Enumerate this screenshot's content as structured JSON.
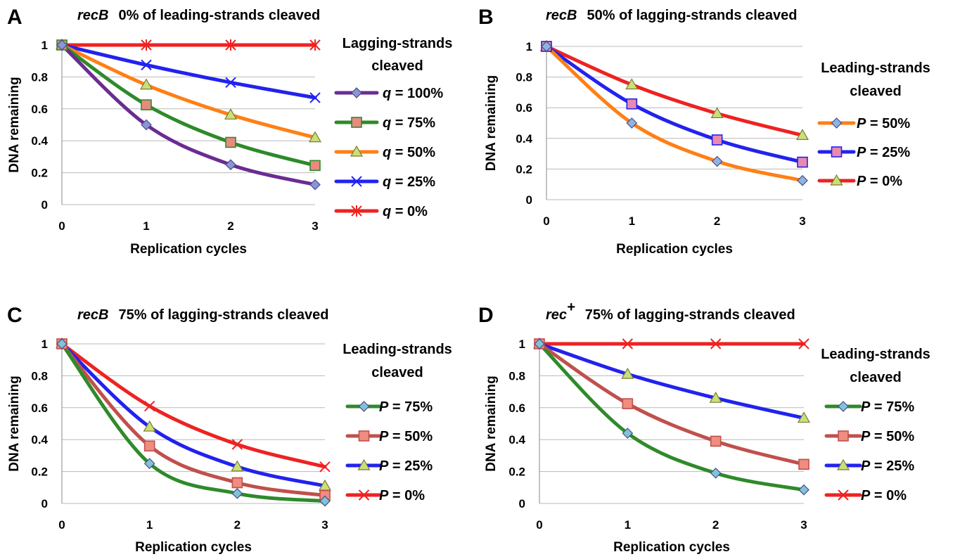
{
  "chart_data": [
    {
      "id": "A",
      "type": "line",
      "panel_letter": "A",
      "title_gene": "recB",
      "title": "0% of leading-strands cleaved",
      "xlabel": "Replication cycles",
      "ylabel": "DNA remaining",
      "x": [
        0,
        1,
        2,
        3
      ],
      "x_ticks": [
        "0",
        "1",
        "2",
        "3"
      ],
      "y_ticks": [
        "0",
        "0.2",
        "0.4",
        "0.6",
        "0.8",
        "1"
      ],
      "ylim": [
        0,
        1
      ],
      "grid": true,
      "legend_title": [
        "Lagging-strands",
        "cleaved"
      ],
      "legend_var": "q",
      "series": [
        {
          "name": "= 100%",
          "color": "#6a2c91",
          "marker": "diamond",
          "marker_fill": "#8b95d6",
          "values": [
            1,
            0.5,
            0.25,
            0.125
          ]
        },
        {
          "name": "= 75%",
          "color": "#2f8a2a",
          "marker": "square",
          "marker_fill": "#e88a7f",
          "values": [
            1,
            0.625,
            0.39,
            0.245
          ]
        },
        {
          "name": "= 50%",
          "color": "#ff7f15",
          "marker": "triangle",
          "marker_fill": "#c9e07a",
          "values": [
            1,
            0.75,
            0.5625,
            0.42
          ]
        },
        {
          "name": "= 25%",
          "color": "#2222ee",
          "marker": "x",
          "marker_fill": "#2222ee",
          "values": [
            1,
            0.875,
            0.765,
            0.67
          ]
        },
        {
          "name": "= 0%",
          "color": "#ee2222",
          "marker": "star",
          "marker_fill": "#ee2222",
          "values": [
            1,
            1,
            1,
            1
          ]
        }
      ]
    },
    {
      "id": "B",
      "type": "line",
      "panel_letter": "B",
      "title_gene": "recB",
      "title": "50% of lagging-strands cleaved",
      "xlabel": "Replication cycles",
      "ylabel": "DNA remaining",
      "x": [
        0,
        1,
        2,
        3
      ],
      "x_ticks": [
        "0",
        "1",
        "2",
        "3"
      ],
      "y_ticks": [
        "0",
        "0.2",
        "0.4",
        "0.6",
        "0.8",
        "1"
      ],
      "ylim": [
        0,
        1
      ],
      "grid": true,
      "legend_title": [
        "Leading-strands",
        "cleaved"
      ],
      "legend_var": "P",
      "series": [
        {
          "name": "= 50%",
          "color": "#ff7f15",
          "marker": "diamond",
          "marker_fill": "#8fb4e0",
          "values": [
            1,
            0.5,
            0.25,
            0.125
          ]
        },
        {
          "name": "= 25%",
          "color": "#2222ee",
          "marker": "square",
          "marker_fill": "#e88ab0",
          "values": [
            1,
            0.625,
            0.39,
            0.245
          ]
        },
        {
          "name": "= 0%",
          "color": "#ee2222",
          "marker": "triangle",
          "marker_fill": "#c9e07a",
          "values": [
            1,
            0.75,
            0.5625,
            0.42
          ]
        }
      ]
    },
    {
      "id": "C",
      "type": "line",
      "panel_letter": "C",
      "title_gene": "recB",
      "title": "75% of lagging-strands cleaved",
      "xlabel": "Replication cycles",
      "ylabel": "DNA remaining",
      "x": [
        0,
        1,
        2,
        3
      ],
      "x_ticks": [
        "0",
        "1",
        "2",
        "3"
      ],
      "y_ticks": [
        "0",
        "0.2",
        "0.4",
        "0.6",
        "0.8",
        "1"
      ],
      "ylim": [
        0,
        1
      ],
      "grid": true,
      "legend_title": [
        "Leading-strands",
        "cleaved"
      ],
      "legend_var": "P",
      "series": [
        {
          "name": "= 75%",
          "color": "#2f8a2a",
          "marker": "diamond",
          "marker_fill": "#7fc4d6",
          "values": [
            1,
            0.25,
            0.0625,
            0.015
          ]
        },
        {
          "name": "= 50%",
          "color": "#c0504d",
          "marker": "square",
          "marker_fill": "#f08c80",
          "values": [
            1,
            0.36,
            0.13,
            0.05
          ]
        },
        {
          "name": "= 25%",
          "color": "#2222ee",
          "marker": "triangle",
          "marker_fill": "#c9e07a",
          "values": [
            1,
            0.48,
            0.23,
            0.11
          ]
        },
        {
          "name": "= 0%",
          "color": "#ee2222",
          "marker": "x",
          "marker_fill": "#ee2222",
          "values": [
            1,
            0.61,
            0.37,
            0.23
          ]
        }
      ]
    },
    {
      "id": "D",
      "type": "line",
      "panel_letter": "D",
      "title_gene": "rec",
      "title_sup": "+",
      "title": "75% of lagging-strands cleaved",
      "xlabel": "Replication cycles",
      "ylabel": "DNA remaining",
      "x": [
        0,
        1,
        2,
        3
      ],
      "x_ticks": [
        "0",
        "1",
        "2",
        "3"
      ],
      "y_ticks": [
        "0",
        "0.2",
        "0.4",
        "0.6",
        "0.8",
        "1"
      ],
      "ylim": [
        0,
        1
      ],
      "grid": true,
      "legend_title": [
        "Leading-strands",
        "cleaved"
      ],
      "legend_var": "P",
      "series": [
        {
          "name": "= 75%",
          "color": "#2f8a2a",
          "marker": "diamond",
          "marker_fill": "#7fc4d6",
          "values": [
            1,
            0.44,
            0.19,
            0.085
          ]
        },
        {
          "name": "= 50%",
          "color": "#c0504d",
          "marker": "square",
          "marker_fill": "#f08c80",
          "values": [
            1,
            0.625,
            0.39,
            0.245
          ]
        },
        {
          "name": "= 25%",
          "color": "#2222ee",
          "marker": "triangle",
          "marker_fill": "#c9e07a",
          "values": [
            1,
            0.81,
            0.66,
            0.535
          ]
        },
        {
          "name": "= 0%",
          "color": "#ee2222",
          "marker": "x",
          "marker_fill": "#ee2222",
          "values": [
            1,
            1,
            1,
            1
          ]
        }
      ]
    }
  ]
}
